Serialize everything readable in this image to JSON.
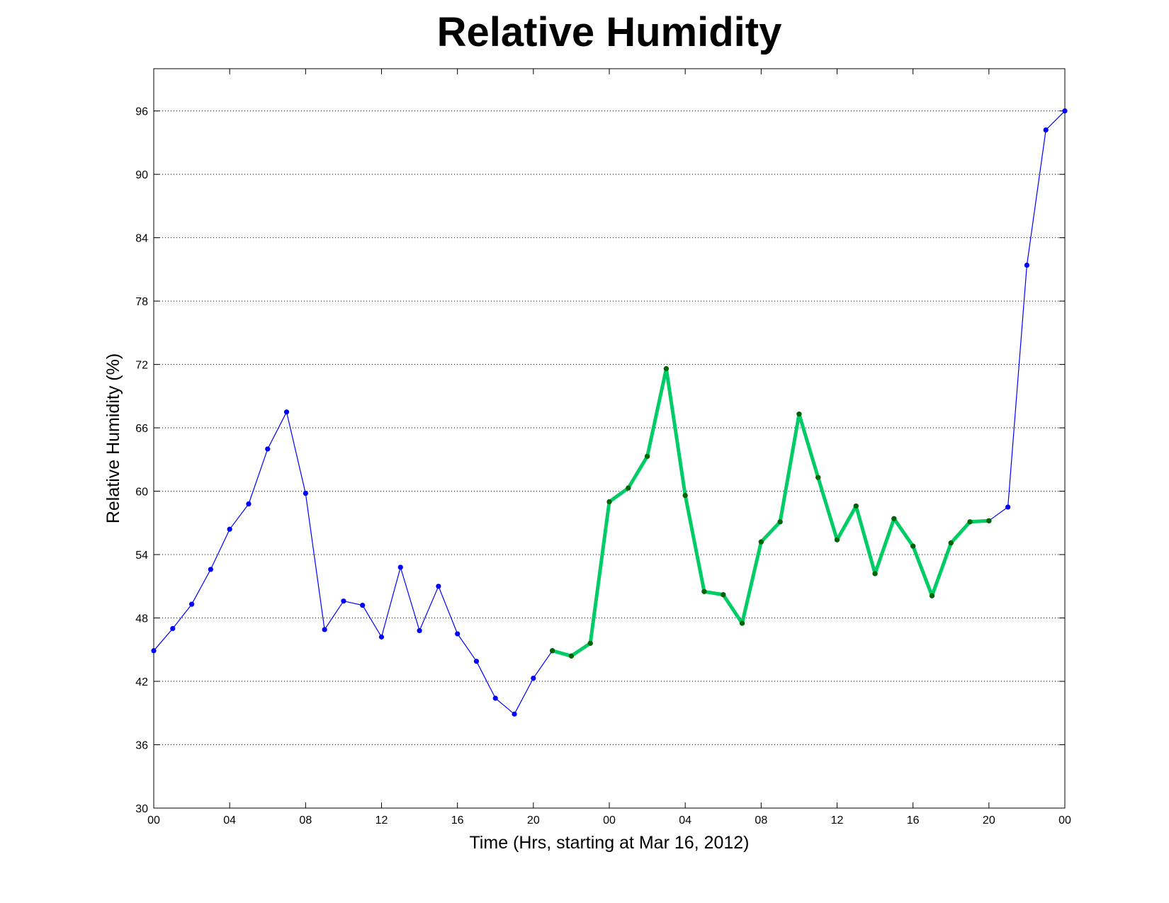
{
  "chart_data": {
    "type": "line",
    "title": "Relative Humidity",
    "xlabel": "Time (Hrs, starting at Mar 16, 2012)",
    "ylabel": "Relative Humidity (%)",
    "ylim": [
      30,
      100
    ],
    "xlim": [
      0,
      48
    ],
    "y_ticks": [
      30,
      36,
      42,
      48,
      54,
      60,
      66,
      72,
      78,
      84,
      90,
      96
    ],
    "x_ticks": [
      0,
      4,
      8,
      12,
      16,
      20,
      24,
      28,
      32,
      36,
      40,
      44,
      48
    ],
    "x_tick_labels": [
      "00",
      "04",
      "08",
      "12",
      "16",
      "20",
      "00",
      "04",
      "08",
      "12",
      "16",
      "20",
      "00"
    ],
    "grid": "horizontal dotted",
    "series": [
      {
        "color": "#0000ff",
        "x": [
          0,
          1,
          2,
          3,
          4,
          5,
          6,
          7,
          8,
          9,
          10,
          11,
          12,
          13,
          14,
          15,
          16,
          17,
          18,
          19,
          20,
          21,
          22,
          23,
          24,
          25,
          26,
          27,
          28,
          29,
          30,
          31,
          32,
          33,
          34,
          35,
          36,
          37,
          38,
          39,
          40,
          41,
          42,
          43,
          44,
          45,
          46,
          47,
          48
        ],
        "values": [
          44.9,
          47.0,
          49.3,
          52.6,
          56.4,
          58.8,
          64.0,
          67.5,
          59.8,
          46.9,
          49.6,
          49.2,
          46.2,
          52.8,
          46.8,
          51.0,
          46.5,
          43.9,
          40.4,
          38.9,
          42.3,
          44.9,
          44.4,
          45.6,
          59.0,
          60.3,
          63.3,
          71.6,
          59.6,
          50.5,
          50.2,
          47.5,
          55.2,
          57.1,
          67.3,
          61.3,
          55.4,
          58.6,
          52.2,
          57.4,
          54.8,
          50.1,
          55.1,
          57.1,
          57.2,
          58.5,
          81.4,
          94.2,
          96.0
        ]
      },
      {
        "color": "#00cc66",
        "marker_color": "#006600",
        "x": [
          21,
          22,
          23,
          24,
          25,
          26,
          27,
          28,
          29,
          30,
          31,
          32,
          33,
          34,
          35,
          36,
          37,
          38,
          39,
          40,
          41,
          42,
          43,
          44
        ],
        "values": [
          44.9,
          44.4,
          45.6,
          59.0,
          60.3,
          63.3,
          71.6,
          59.6,
          50.5,
          50.2,
          47.5,
          55.2,
          57.1,
          67.3,
          61.3,
          55.4,
          58.6,
          52.2,
          57.4,
          54.8,
          50.1,
          55.1,
          57.1,
          57.2
        ]
      }
    ]
  }
}
